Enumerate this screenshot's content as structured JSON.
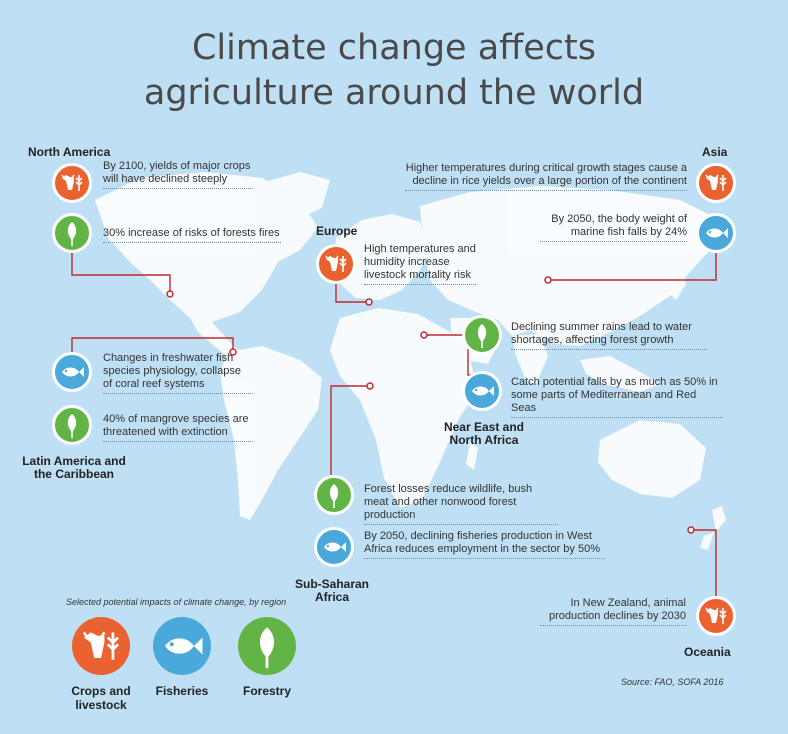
{
  "title": {
    "line1": "Climate change affects",
    "line2": "agriculture around the world"
  },
  "regions": {
    "north_america": {
      "name": "North America",
      "impacts": [
        {
          "icon": "crops-livestock-icon",
          "text": "By 2100, yields of major crops will have declined steeply"
        },
        {
          "icon": "forestry-icon",
          "text": "30% increase of risks of forests fires"
        }
      ]
    },
    "europe": {
      "name": "Europe",
      "impacts": [
        {
          "icon": "crops-livestock-icon",
          "text": "High temperatures and humidity increase livestock mortality risk"
        }
      ]
    },
    "asia": {
      "name": "Asia",
      "impacts": [
        {
          "icon": "crops-livestock-icon",
          "text": "Higher temperatures during critical growth stages cause a decline in rice yields over a large portion of the continent"
        },
        {
          "icon": "fisheries-icon",
          "text": "By 2050, the body weight of marine fish falls by 24%"
        }
      ]
    },
    "latin_america": {
      "name": "Latin America and the Caribbean",
      "impacts": [
        {
          "icon": "fisheries-icon",
          "text": "Changes in freshwater fish species physiology, collapse of coral reef systems"
        },
        {
          "icon": "forestry-icon",
          "text": "40% of mangrove species are threatened with extinction"
        }
      ]
    },
    "near_east": {
      "name": "Near East and North Africa",
      "impacts": [
        {
          "icon": "forestry-icon",
          "text": "Declining summer rains lead to water shortages, affecting forest growth"
        },
        {
          "icon": "fisheries-icon",
          "text": "Catch potential falls by as much as 50% in some parts of Mediterranean and Red Seas"
        }
      ]
    },
    "sub_saharan": {
      "name": "Sub-Saharan Africa",
      "impacts": [
        {
          "icon": "forestry-icon",
          "text": "Forest losses reduce wildlife, bush meat and other nonwood forest production"
        },
        {
          "icon": "fisheries-icon",
          "text": "By 2050, declining fisheries production in West Africa reduces employment in the sector by 50%"
        }
      ]
    },
    "oceania": {
      "name": "Oceania",
      "impacts": [
        {
          "icon": "crops-livestock-icon",
          "text": "In New Zealand, animal production declines by 2030"
        }
      ]
    }
  },
  "legend": {
    "title": "Selected potential impacts of climate change, by region",
    "items": [
      {
        "label": "Crops and livestock",
        "icon": "crops-livestock-icon",
        "color": "#ea6230"
      },
      {
        "label": "Fisheries",
        "icon": "fisheries-icon",
        "color": "#4aa8db"
      },
      {
        "label": "Forestry",
        "icon": "forestry-icon",
        "color": "#62b446"
      }
    ]
  },
  "source": "Source: FAO, SOFA 2016",
  "colors": {
    "background": "#bfe0f4",
    "land": "#ffffff",
    "connector": "#c0282d",
    "crops": "#ea6230",
    "fisheries": "#4aa8db",
    "forestry": "#62b446"
  }
}
